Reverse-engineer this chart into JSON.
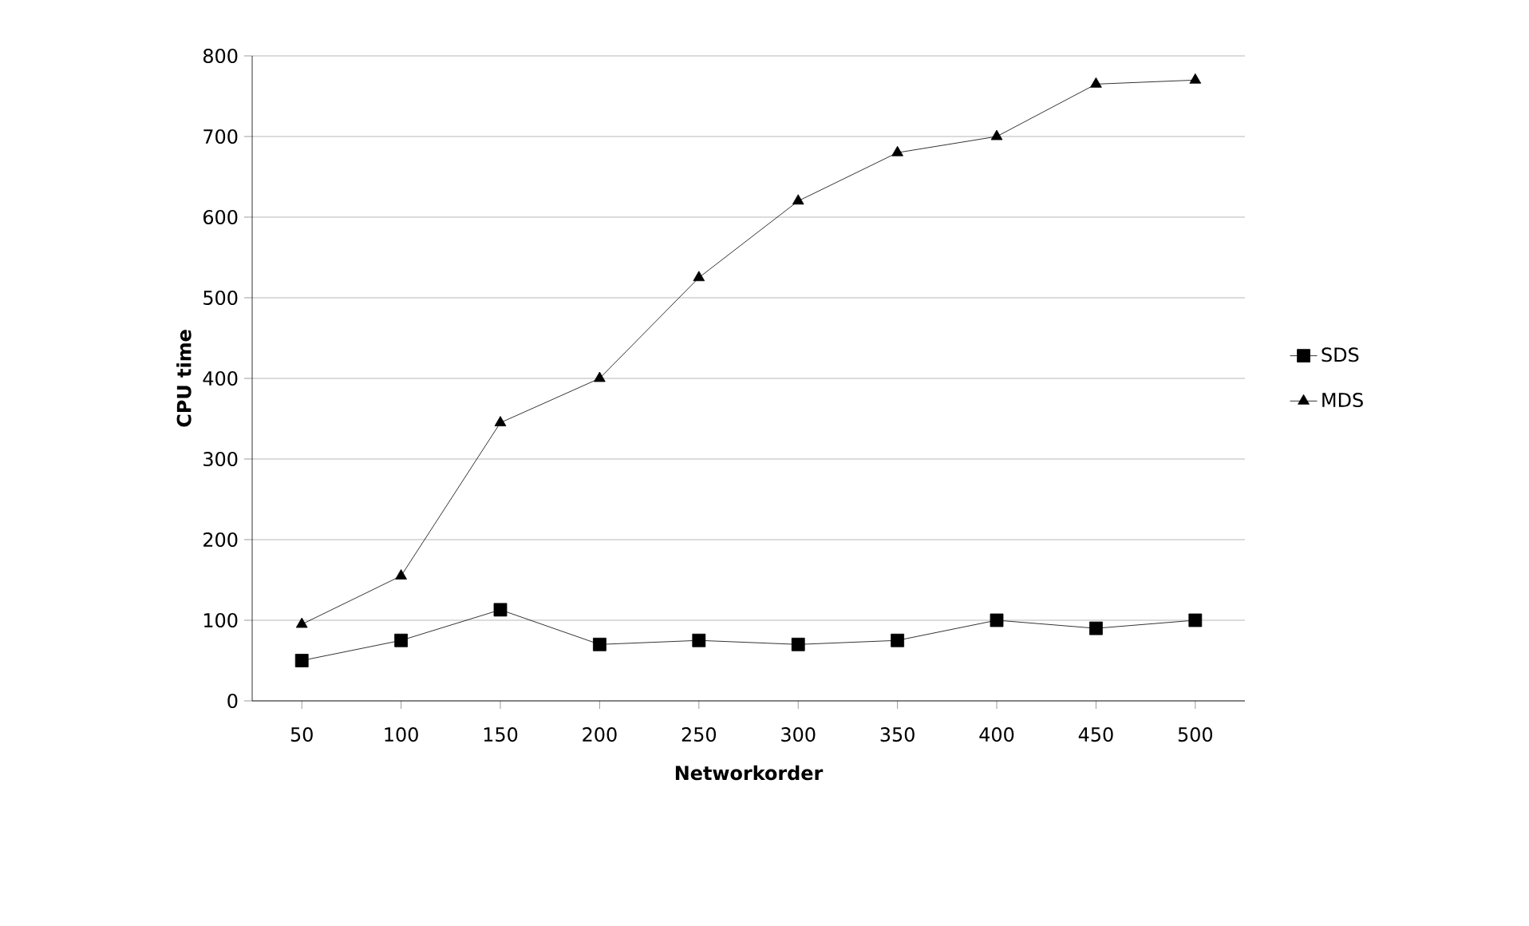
{
  "chart_data": {
    "type": "line",
    "xlabel": "Networkorder",
    "ylabel": "CPU time",
    "categories": [
      "50",
      "100",
      "150",
      "200",
      "250",
      "300",
      "350",
      "400",
      "450",
      "500"
    ],
    "series": [
      {
        "name": "SDS",
        "color": "#000000",
        "marker": "square",
        "values": [
          50,
          75,
          113,
          70,
          75,
          70,
          75,
          100,
          90,
          100
        ]
      },
      {
        "name": "MDS",
        "color": "#000000",
        "marker": "triangle",
        "values": [
          95,
          155,
          345,
          400,
          525,
          620,
          680,
          700,
          765,
          770
        ]
      }
    ],
    "ylim": [
      0,
      800
    ],
    "yticks": [
      0,
      100,
      200,
      300,
      400,
      500,
      600,
      700,
      800
    ],
    "grid": "y",
    "legend": "right",
    "line_style": "solid"
  }
}
